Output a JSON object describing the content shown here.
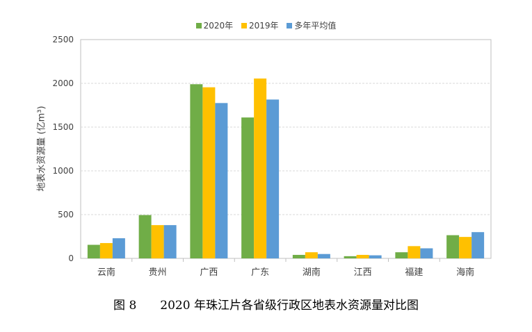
{
  "chart_data": {
    "type": "bar",
    "categories": [
      "云南",
      "贵州",
      "广西",
      "广东",
      "湖南",
      "江西",
      "福建",
      "海南"
    ],
    "series": [
      {
        "name": "2020年",
        "color": "#70AD47",
        "values": [
          155,
          495,
          1990,
          1610,
          40,
          25,
          70,
          265
        ]
      },
      {
        "name": "2019年",
        "color": "#FFC000",
        "values": [
          175,
          380,
          1955,
          2055,
          70,
          40,
          140,
          245
        ]
      },
      {
        "name": "多年平均值",
        "color": "#5B9BD5",
        "values": [
          230,
          380,
          1775,
          1815,
          50,
          35,
          115,
          300
        ]
      }
    ],
    "ylabel": "地表水资源量 (亿m³)",
    "ylim": [
      0,
      2500
    ],
    "yticks": [
      0,
      500,
      1000,
      1500,
      2000,
      2500
    ],
    "grid": true,
    "legend_position": "top"
  },
  "caption": {
    "figure_no": "图 8",
    "title": "2020 年珠江片各省级行政区地表水资源量对比图"
  }
}
